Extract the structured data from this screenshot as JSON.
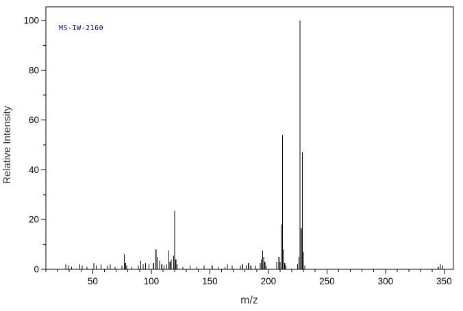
{
  "chart_data": {
    "type": "bar",
    "subtype": "mass-spectrum-stick-plot",
    "title": "",
    "xlabel": "m/z",
    "ylabel": "Relative Intensity",
    "annotation": "MS-IW-2160",
    "xlim": [
      10,
      358
    ],
    "ylim": [
      0,
      100
    ],
    "x_major_ticks": [
      50,
      100,
      150,
      200,
      250,
      300,
      350
    ],
    "x_minor_step": 10,
    "y_major_ticks": [
      0,
      20,
      40,
      60,
      80,
      100
    ],
    "y_minor_step": 10,
    "grid": false,
    "legend": false,
    "colors": {
      "line": "#000000",
      "text": "#000000",
      "axis_label": "#333333",
      "annotation": "#00008b",
      "background": "#ffffff"
    },
    "peaks": [
      [
        27,
        2
      ],
      [
        29,
        1.5
      ],
      [
        32,
        1
      ],
      [
        39,
        2
      ],
      [
        41,
        1.5
      ],
      [
        45,
        1
      ],
      [
        51,
        2.5
      ],
      [
        53,
        1.5
      ],
      [
        57,
        2
      ],
      [
        63,
        1.5
      ],
      [
        65,
        2
      ],
      [
        69,
        1
      ],
      [
        75,
        1.5
      ],
      [
        77,
        6
      ],
      [
        78,
        2.5
      ],
      [
        79,
        1.5
      ],
      [
        83,
        1
      ],
      [
        89,
        1.5
      ],
      [
        91,
        3.5
      ],
      [
        93,
        2
      ],
      [
        95,
        2.5
      ],
      [
        98,
        2
      ],
      [
        102,
        2.5
      ],
      [
        104,
        8
      ],
      [
        105,
        5
      ],
      [
        107,
        3.5
      ],
      [
        109,
        2
      ],
      [
        111,
        1.5
      ],
      [
        113,
        2
      ],
      [
        115,
        7.5
      ],
      [
        116,
        3
      ],
      [
        117,
        4
      ],
      [
        119,
        5.5
      ],
      [
        120,
        23.5
      ],
      [
        121,
        4
      ],
      [
        122,
        2
      ],
      [
        127,
        1
      ],
      [
        133,
        1.5
      ],
      [
        139,
        1
      ],
      [
        145,
        1.5
      ],
      [
        152,
        1.5
      ],
      [
        157,
        1
      ],
      [
        163,
        1
      ],
      [
        165,
        2
      ],
      [
        169,
        1.5
      ],
      [
        176,
        1.5
      ],
      [
        178,
        2
      ],
      [
        181,
        1.5
      ],
      [
        183,
        2.5
      ],
      [
        185,
        1.5
      ],
      [
        189,
        1.5
      ],
      [
        193,
        2.5
      ],
      [
        194,
        4
      ],
      [
        195,
        7.5
      ],
      [
        196,
        5
      ],
      [
        197,
        3
      ],
      [
        198,
        1.5
      ],
      [
        207,
        3
      ],
      [
        209,
        5
      ],
      [
        210,
        3
      ],
      [
        211,
        18
      ],
      [
        212,
        54
      ],
      [
        213,
        8
      ],
      [
        214,
        2.5
      ],
      [
        215,
        1.5
      ],
      [
        225,
        2
      ],
      [
        226,
        5
      ],
      [
        227,
        100
      ],
      [
        228,
        16.5
      ],
      [
        229,
        47
      ],
      [
        230,
        7
      ],
      [
        231,
        1.5
      ],
      [
        345,
        1
      ],
      [
        347,
        2
      ],
      [
        349,
        1.5
      ]
    ]
  }
}
